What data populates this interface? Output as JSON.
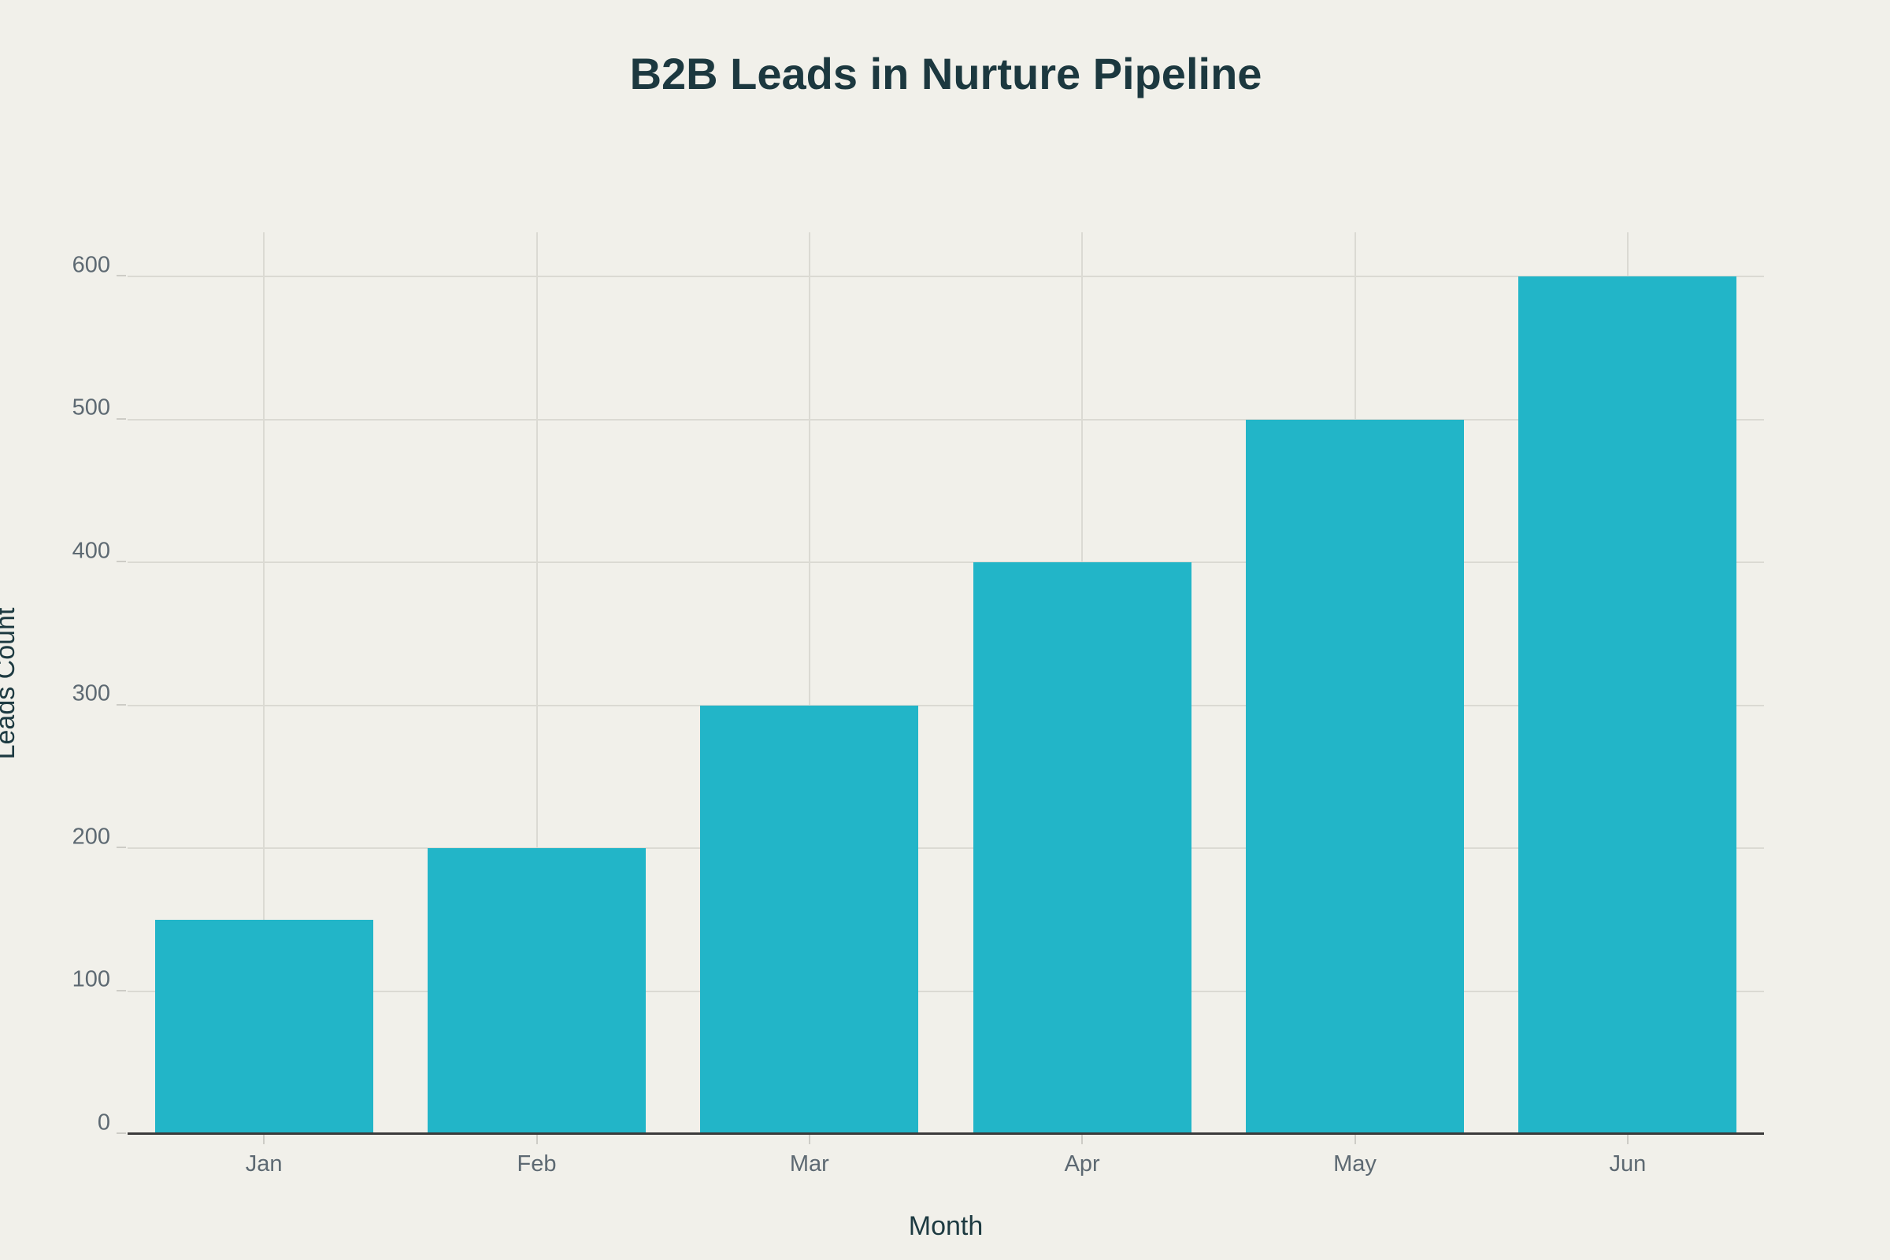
{
  "title": "B2B Leads in Nurture Pipeline",
  "chart_data": {
    "type": "bar",
    "title": "B2B Leads in Nurture Pipeline",
    "categories": [
      "Jan",
      "Feb",
      "Mar",
      "Apr",
      "May",
      "Jun"
    ],
    "values": [
      150,
      200,
      300,
      400,
      500,
      600
    ],
    "xlabel": "Month",
    "ylabel": "Leads Count",
    "ylim": [
      0,
      631
    ],
    "yticks": [
      0,
      100,
      200,
      300,
      400,
      500,
      600
    ],
    "grid": true,
    "legend": "none",
    "colors": {
      "bar_fill": "#22b5c8",
      "background": "#f1f0ea",
      "grid_line": "#dbdad3",
      "tick_mark": "#cdccc6",
      "axis_line": "#3a3a3a",
      "tick_label": "#5d6972",
      "axis_title": "#1d3a41",
      "chart_title": "#1c383f"
    }
  }
}
